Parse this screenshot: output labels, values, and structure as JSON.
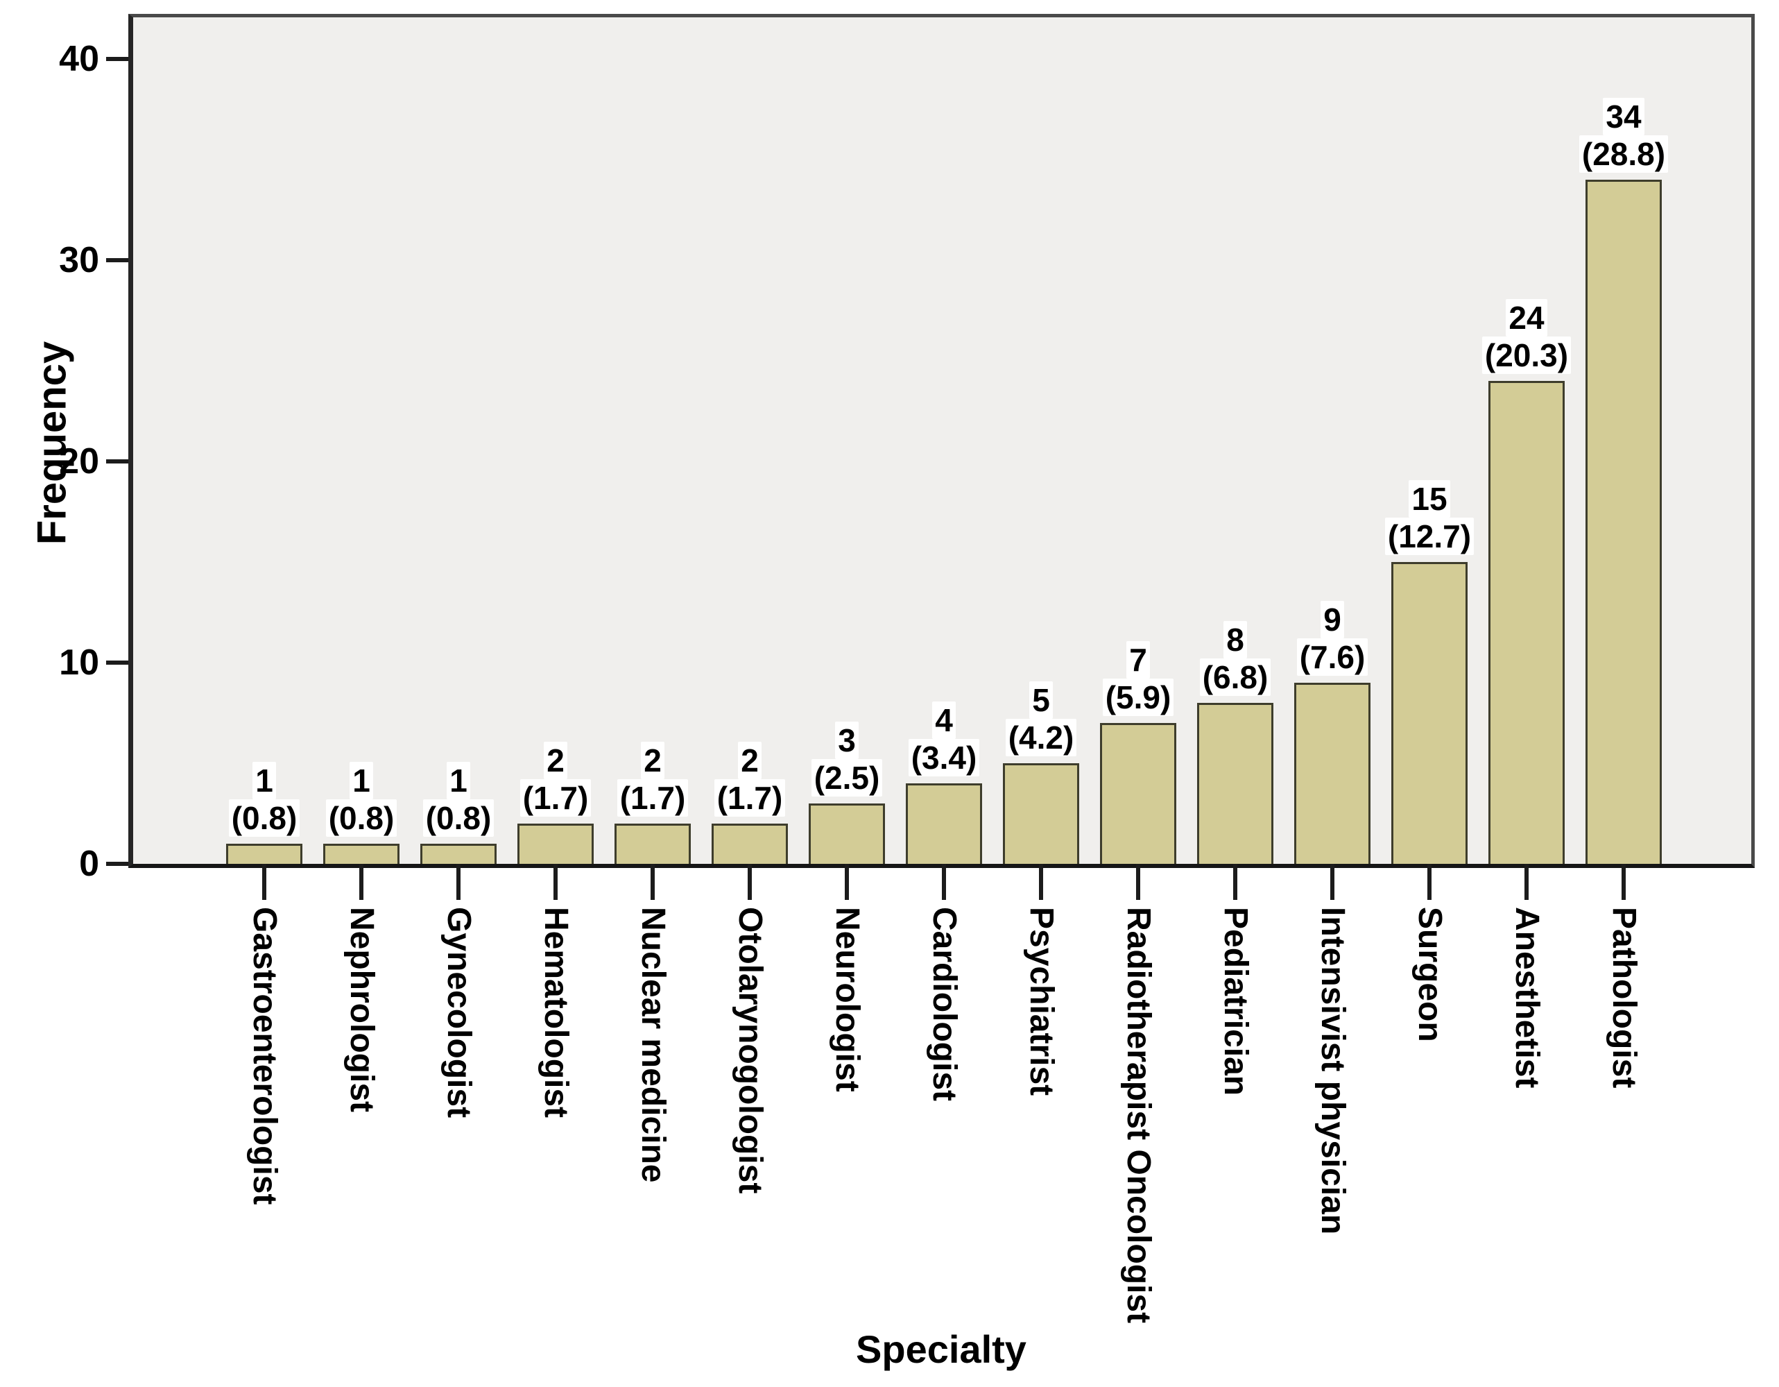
{
  "chart_data": {
    "type": "bar",
    "title": "",
    "xlabel": "Specialty",
    "ylabel": "Frequency",
    "categories": [
      "Gastroenterologist",
      "Nephrologist",
      "Gynecologist",
      "Hematologist",
      "Nuclear medicine",
      "Otolarynogologist",
      "Neurologist",
      "Cardiologist",
      "Psychiatrist",
      "Radiotherapist Oncologist",
      "Pediatrician",
      "Intensivist physician",
      "Surgeon",
      "Anesthetist",
      "Pathologist"
    ],
    "values": [
      1,
      1,
      1,
      2,
      2,
      2,
      3,
      4,
      5,
      7,
      8,
      9,
      15,
      24,
      34
    ],
    "percent_labels": [
      "(0.8)",
      "(0.8)",
      "(0.8)",
      "(1.7)",
      "(1.7)",
      "(1.7)",
      "(2.5)",
      "(3.4)",
      "(4.2)",
      "(5.9)",
      "(6.8)",
      "(7.6)",
      "(12.7)",
      "(20.3)",
      "(28.8)"
    ],
    "yticks": [
      0,
      10,
      20,
      30,
      40
    ],
    "ylim": [
      0,
      42
    ],
    "grid": false,
    "legend_position": "none",
    "bar_color": "#d3cc96",
    "bar_border_color": "#3e3d2c",
    "plot_background": "#f0efed",
    "frame_color": "#4a4a4a",
    "axis_color": "#1c1c1c",
    "text_color": "#000000"
  }
}
